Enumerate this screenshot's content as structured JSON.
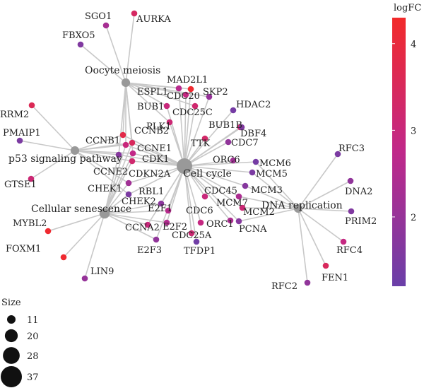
{
  "graph": {
    "terms": [
      {
        "id": "oocyte",
        "label": "Oocyte meiosis",
        "size": 20
      },
      {
        "id": "p53",
        "label": "p53 signaling pathway",
        "size": 20
      },
      {
        "id": "cellcycle",
        "label": "Cell cycle",
        "size": 37
      },
      {
        "id": "senescence",
        "label": "Cellular senescence",
        "size": 24
      },
      {
        "id": "dnarep",
        "label": "DNA replication",
        "size": 20
      }
    ],
    "genes": [
      {
        "id": "SGO1",
        "label": "SGO1",
        "logFC": 2.3
      },
      {
        "id": "AURKA",
        "label": "AURKA",
        "logFC": 3.4
      },
      {
        "id": "FBXO5",
        "label": "FBXO5",
        "logFC": 1.6
      },
      {
        "id": "MAD2L1",
        "label": "MAD2L1",
        "logFC": 4.2
      },
      {
        "id": "ESPL1",
        "label": "ESPL1",
        "logFC": 2.6
      },
      {
        "id": "CDC20",
        "label": "CDC20",
        "logFC": 2.9
      },
      {
        "id": "SKP2",
        "label": "SKP2",
        "logFC": 2.0
      },
      {
        "id": "BUB1",
        "label": "BUB1",
        "logFC": 3.0
      },
      {
        "id": "HDAC2",
        "label": "HDAC2",
        "logFC": 1.4
      },
      {
        "id": "CDC25C",
        "label": "CDC25C",
        "logFC": 3.2
      },
      {
        "id": "RRM2",
        "label": "RRM2",
        "logFC": 3.6
      },
      {
        "id": "BUB1B",
        "label": "BUB1B",
        "logFC": 3.2
      },
      {
        "id": "PLK1",
        "label": "PLK1",
        "logFC": 3.1
      },
      {
        "id": "PMAIP1",
        "label": "PMAIP1",
        "logFC": 1.5
      },
      {
        "id": "CCNB2",
        "label": "CCNB2",
        "logFC": 3.8
      },
      {
        "id": "DBF4",
        "label": "DBF4",
        "logFC": 1.6
      },
      {
        "id": "CCNB1",
        "label": "CCNB1",
        "logFC": 3.0
      },
      {
        "id": "CDC7",
        "label": "CDC7",
        "logFC": 1.9
      },
      {
        "id": "TTK",
        "label": "TTK",
        "logFC": 3.3
      },
      {
        "id": "CCNE1",
        "label": "CCNE1",
        "logFC": 3.5
      },
      {
        "id": "RFC3",
        "label": "RFC3",
        "logFC": 1.5
      },
      {
        "id": "CDK1",
        "label": "CDK1",
        "logFC": 2.8
      },
      {
        "id": "ORC6",
        "label": "ORC6",
        "logFC": 2.2
      },
      {
        "id": "MCM6",
        "label": "MCM6",
        "logFC": 1.4
      },
      {
        "id": "CCNE2",
        "label": "CCNE2",
        "logFC": 1.7
      },
      {
        "id": "CDKN2A",
        "label": "CDKN2A",
        "logFC": 3.2
      },
      {
        "id": "MCM5",
        "label": "MCM5",
        "logFC": 1.5
      },
      {
        "id": "GTSE1",
        "label": "GTSE1",
        "logFC": 3.1
      },
      {
        "id": "CHEK1",
        "label": "CHEK1",
        "logFC": 2.2
      },
      {
        "id": "DNA2",
        "label": "DNA2",
        "logFC": 1.9
      },
      {
        "id": "CDC45",
        "label": "CDC45",
        "logFC": 3.0
      },
      {
        "id": "RBL1",
        "label": "RBL1",
        "logFC": 1.8
      },
      {
        "id": "MCM3",
        "label": "MCM3",
        "logFC": 1.7
      },
      {
        "id": "CHEK2",
        "label": "CHEK2",
        "logFC": 1.5
      },
      {
        "id": "MCM7",
        "label": "MCM7",
        "logFC": 2.4
      },
      {
        "id": "E2F1",
        "label": "E2F1",
        "logFC": 2.6
      },
      {
        "id": "MYBL2",
        "label": "MYBL2",
        "logFC": 4.2
      },
      {
        "id": "MCM2",
        "label": "MCM2",
        "logFC": 3.1
      },
      {
        "id": "PRIM2",
        "label": "PRIM2",
        "logFC": 1.6
      },
      {
        "id": "CDC6",
        "label": "CDC6",
        "logFC": 2.9
      },
      {
        "id": "CCNA2",
        "label": "CCNA2",
        "logFC": 3.0
      },
      {
        "id": "ORC1",
        "label": "ORC1",
        "logFC": 2.4
      },
      {
        "id": "PCNA",
        "label": "PCNA",
        "logFC": 1.7
      },
      {
        "id": "E2F2",
        "label": "E2F2",
        "logFC": 2.5
      },
      {
        "id": "RFC4",
        "label": "RFC4",
        "logFC": 2.9
      },
      {
        "id": "CDC25A",
        "label": "CDC25A",
        "logFC": 3.1
      },
      {
        "id": "FOXM1",
        "label": "FOXM1",
        "logFC": 4.2
      },
      {
        "id": "E2F3",
        "label": "E2F3",
        "logFC": 1.9
      },
      {
        "id": "TFDP1",
        "label": "TFDP1",
        "logFC": 1.3
      },
      {
        "id": "FEN1",
        "label": "FEN1",
        "logFC": 3.5
      },
      {
        "id": "LIN9",
        "label": "LIN9",
        "logFC": 2.0
      },
      {
        "id": "RFC2",
        "label": "RFC2",
        "logFC": 1.9
      }
    ],
    "edges": [
      [
        "oocyte",
        "SGO1"
      ],
      [
        "oocyte",
        "AURKA"
      ],
      [
        "oocyte",
        "FBXO5"
      ],
      [
        "oocyte",
        "MAD2L1"
      ],
      [
        "oocyte",
        "ESPL1"
      ],
      [
        "oocyte",
        "CDC20"
      ],
      [
        "oocyte",
        "SKP2"
      ],
      [
        "oocyte",
        "BUB1"
      ],
      [
        "oocyte",
        "CDC25C"
      ],
      [
        "oocyte",
        "PLK1"
      ],
      [
        "oocyte",
        "CCNB2"
      ],
      [
        "oocyte",
        "CCNB1"
      ],
      [
        "oocyte",
        "CCNE1"
      ],
      [
        "oocyte",
        "CDK1"
      ],
      [
        "oocyte",
        "CCNE2"
      ],
      [
        "p53",
        "RRM2"
      ],
      [
        "p53",
        "PMAIP1"
      ],
      [
        "p53",
        "GTSE1"
      ],
      [
        "p53",
        "CCNB1"
      ],
      [
        "p53",
        "CCNB2"
      ],
      [
        "p53",
        "CCNE1"
      ],
      [
        "p53",
        "CCNE2"
      ],
      [
        "p53",
        "CDK1"
      ],
      [
        "p53",
        "CDKN2A"
      ],
      [
        "p53",
        "CHEK1"
      ],
      [
        "p53",
        "CHEK2"
      ],
      [
        "cellcycle",
        "MAD2L1"
      ],
      [
        "cellcycle",
        "ESPL1"
      ],
      [
        "cellcycle",
        "CDC20"
      ],
      [
        "cellcycle",
        "SKP2"
      ],
      [
        "cellcycle",
        "BUB1"
      ],
      [
        "cellcycle",
        "HDAC2"
      ],
      [
        "cellcycle",
        "CDC25C"
      ],
      [
        "cellcycle",
        "BUB1B"
      ],
      [
        "cellcycle",
        "PLK1"
      ],
      [
        "cellcycle",
        "CCNB2"
      ],
      [
        "cellcycle",
        "DBF4"
      ],
      [
        "cellcycle",
        "CCNB1"
      ],
      [
        "cellcycle",
        "CDC7"
      ],
      [
        "cellcycle",
        "TTK"
      ],
      [
        "cellcycle",
        "CCNE1"
      ],
      [
        "cellcycle",
        "CDK1"
      ],
      [
        "cellcycle",
        "ORC6"
      ],
      [
        "cellcycle",
        "MCM6"
      ],
      [
        "cellcycle",
        "CCNE2"
      ],
      [
        "cellcycle",
        "CDKN2A"
      ],
      [
        "cellcycle",
        "MCM5"
      ],
      [
        "cellcycle",
        "CHEK1"
      ],
      [
        "cellcycle",
        "CDC45"
      ],
      [
        "cellcycle",
        "RBL1"
      ],
      [
        "cellcycle",
        "MCM3"
      ],
      [
        "cellcycle",
        "CHEK2"
      ],
      [
        "cellcycle",
        "MCM7"
      ],
      [
        "cellcycle",
        "E2F1"
      ],
      [
        "cellcycle",
        "MCM2"
      ],
      [
        "cellcycle",
        "CDC6"
      ],
      [
        "cellcycle",
        "CCNA2"
      ],
      [
        "cellcycle",
        "ORC1"
      ],
      [
        "cellcycle",
        "PCNA"
      ],
      [
        "cellcycle",
        "E2F2"
      ],
      [
        "cellcycle",
        "CDC25A"
      ],
      [
        "cellcycle",
        "E2F3"
      ],
      [
        "cellcycle",
        "TFDP1"
      ],
      [
        "senescence",
        "MYBL2"
      ],
      [
        "senescence",
        "FOXM1"
      ],
      [
        "senescence",
        "LIN9"
      ],
      [
        "senescence",
        "CCNB1"
      ],
      [
        "senescence",
        "CCNE1"
      ],
      [
        "senescence",
        "CCNE2"
      ],
      [
        "senescence",
        "CDK1"
      ],
      [
        "senescence",
        "CDKN2A"
      ],
      [
        "senescence",
        "CHEK1"
      ],
      [
        "senescence",
        "CHEK2"
      ],
      [
        "senescence",
        "E2F1"
      ],
      [
        "senescence",
        "E2F2"
      ],
      [
        "senescence",
        "E2F3"
      ],
      [
        "senescence",
        "CCNA2"
      ],
      [
        "senescence",
        "RBL1"
      ],
      [
        "dnarep",
        "RFC3"
      ],
      [
        "dnarep",
        "DNA2"
      ],
      [
        "dnarep",
        "PRIM2"
      ],
      [
        "dnarep",
        "RFC4"
      ],
      [
        "dnarep",
        "FEN1"
      ],
      [
        "dnarep",
        "RFC2"
      ],
      [
        "dnarep",
        "MCM6"
      ],
      [
        "dnarep",
        "MCM5"
      ],
      [
        "dnarep",
        "MCM3"
      ],
      [
        "dnarep",
        "MCM7"
      ],
      [
        "dnarep",
        "MCM2"
      ],
      [
        "dnarep",
        "PCNA"
      ]
    ]
  },
  "legend": {
    "color_title": "logFC",
    "color_ticks": [
      "4",
      "3",
      "2"
    ],
    "color_tick_values": [
      4,
      3,
      2
    ],
    "color_domain": [
      1.2,
      4.3
    ],
    "color_low": "#6a3fa8",
    "color_mid": "#c0288a",
    "color_high": "#f22a2a",
    "size_title": "Size",
    "size_items": [
      {
        "label": "11",
        "value": 11
      },
      {
        "label": "20",
        "value": 20
      },
      {
        "label": "28",
        "value": 28
      },
      {
        "label": "37",
        "value": 37
      }
    ]
  },
  "colors": {
    "term_node": "#999999",
    "edge": "#c8c8c8"
  }
}
